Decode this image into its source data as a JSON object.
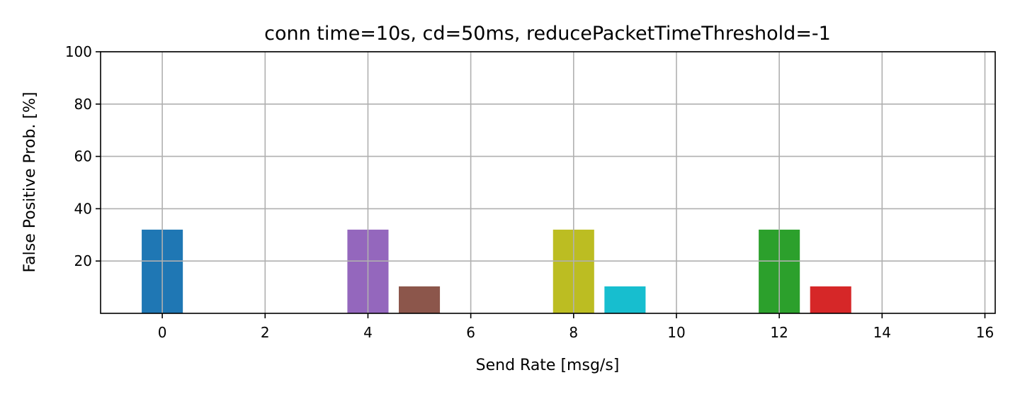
{
  "chart_data": {
    "type": "bar",
    "title": "conn time=10s, cd=50ms, reducePacketTimeThreshold=-1",
    "xlabel": "Send Rate [msg/s]",
    "ylabel": "False Positive Prob. [%]",
    "xlim": [
      -1.2,
      16.2
    ],
    "ylim": [
      0,
      100
    ],
    "xticks": [
      0,
      2,
      4,
      6,
      8,
      10,
      12,
      14,
      16
    ],
    "yticks": [
      20,
      40,
      60,
      80,
      100
    ],
    "bar_width": 0.8,
    "grid": true,
    "x": [
      0,
      1,
      2,
      3,
      4,
      5,
      6,
      7,
      8,
      9,
      10,
      11,
      12,
      13,
      14,
      15,
      16
    ],
    "values": [
      32,
      0,
      0,
      0,
      32,
      10.3,
      0,
      0,
      32,
      10.3,
      0,
      0,
      32,
      10.3,
      0,
      0,
      0
    ],
    "colors": [
      "#1f77b4",
      "#ff7f0e",
      "#2ca02c",
      "#d62728",
      "#9467bd",
      "#8c564b",
      "#e377c2",
      "#7f7f7f",
      "#bcbd22",
      "#17becf"
    ]
  }
}
